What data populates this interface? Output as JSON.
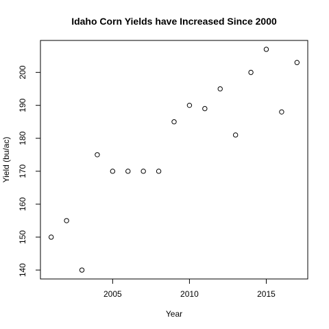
{
  "chart_data": {
    "type": "scatter",
    "title": "Idaho Corn Yields have Increased Since 2000",
    "xlabel": "Year",
    "ylabel": "Yield (bu/ac)",
    "xlim": [
      2000.3,
      2017.7
    ],
    "ylim": [
      137.3,
      209.7
    ],
    "x_ticks": [
      2005,
      2010,
      2015
    ],
    "y_ticks": [
      140,
      150,
      160,
      170,
      180,
      190,
      200
    ],
    "grid": false,
    "legend": "none",
    "x": [
      2001,
      2002,
      2003,
      2004,
      2005,
      2006,
      2007,
      2008,
      2009,
      2010,
      2011,
      2012,
      2013,
      2014,
      2015,
      2016,
      2017
    ],
    "y": [
      150,
      155,
      140,
      175,
      170,
      170,
      170,
      170,
      185,
      190,
      189,
      195,
      181,
      200,
      207,
      188,
      203
    ]
  }
}
